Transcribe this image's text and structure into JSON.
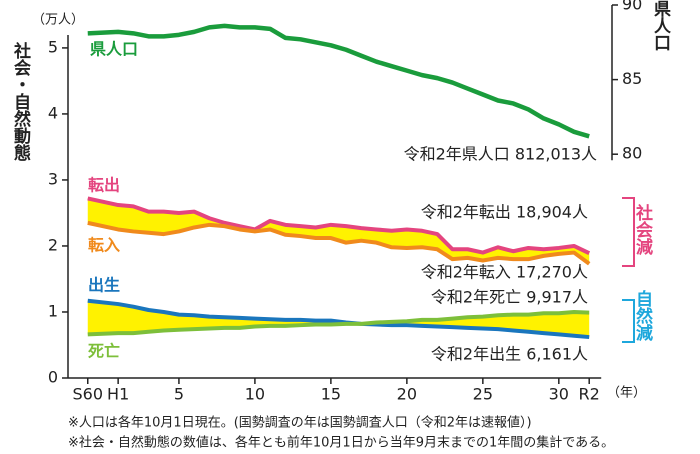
{
  "chart_data": {
    "type": "line",
    "y_unit": "（万人）",
    "ylabel": "社会・自然動態",
    "y2label": "県人口",
    "x_unit": "（年）",
    "x": [
      -1,
      1,
      2,
      3,
      4,
      5,
      6,
      7,
      8,
      9,
      10,
      11,
      12,
      13,
      14,
      15,
      16,
      17,
      18,
      19,
      20,
      21,
      22,
      23,
      24,
      25,
      26,
      27,
      28,
      29,
      30,
      31,
      32
    ],
    "xlim": [
      -2.3,
      33.5
    ],
    "xticks": [
      {
        "value": -1,
        "label": "S60"
      },
      {
        "value": 1,
        "label": "H1"
      },
      5,
      10,
      15,
      20,
      25,
      30,
      {
        "value": 32,
        "label": "R2"
      }
    ],
    "ylim": [
      0,
      5.65
    ],
    "yticks": [
      0,
      1,
      2,
      3,
      4,
      5
    ],
    "y2lim": [
      65,
      90
    ],
    "y2ticks": [
      80,
      85,
      90
    ],
    "series": [
      {
        "name": "県人口",
        "color": "#1a9c3c",
        "axis": "y2",
        "values": [
          88.1,
          88.2,
          88.1,
          87.9,
          87.9,
          88.0,
          88.2,
          88.5,
          88.6,
          88.5,
          88.5,
          88.4,
          87.8,
          87.7,
          87.5,
          87.3,
          87.0,
          86.6,
          86.2,
          85.9,
          85.6,
          85.3,
          85.1,
          84.8,
          84.4,
          84.0,
          83.6,
          83.4,
          83.0,
          82.4,
          82.0,
          81.5,
          81.2
        ]
      },
      {
        "name": "転出",
        "color": "#e4457f",
        "values": [
          2.72,
          2.62,
          2.6,
          2.52,
          2.52,
          2.5,
          2.52,
          2.42,
          2.35,
          2.3,
          2.25,
          2.38,
          2.32,
          2.3,
          2.28,
          2.32,
          2.3,
          2.27,
          2.25,
          2.23,
          2.25,
          2.23,
          2.18,
          1.95,
          1.95,
          1.9,
          1.98,
          1.92,
          1.97,
          1.95,
          1.97,
          2.0,
          1.89
        ]
      },
      {
        "name": "転入",
        "color": "#f08a1c",
        "values": [
          2.35,
          2.25,
          2.22,
          2.2,
          2.18,
          2.22,
          2.28,
          2.32,
          2.3,
          2.25,
          2.22,
          2.25,
          2.17,
          2.15,
          2.12,
          2.12,
          2.05,
          2.08,
          2.05,
          1.98,
          1.97,
          1.98,
          1.95,
          1.8,
          1.82,
          1.78,
          1.82,
          1.8,
          1.8,
          1.85,
          1.88,
          1.9,
          1.73
        ]
      },
      {
        "name": "出生",
        "color": "#1a76bd",
        "values": [
          1.17,
          1.12,
          1.08,
          1.03,
          1.0,
          0.96,
          0.95,
          0.93,
          0.92,
          0.91,
          0.9,
          0.89,
          0.88,
          0.88,
          0.87,
          0.87,
          0.84,
          0.82,
          0.81,
          0.8,
          0.8,
          0.79,
          0.78,
          0.77,
          0.76,
          0.75,
          0.74,
          0.72,
          0.7,
          0.68,
          0.66,
          0.64,
          0.62
        ]
      },
      {
        "name": "死亡",
        "color": "#7dbf3a",
        "values": [
          0.66,
          0.68,
          0.68,
          0.7,
          0.72,
          0.73,
          0.74,
          0.75,
          0.76,
          0.76,
          0.78,
          0.79,
          0.79,
          0.8,
          0.81,
          0.81,
          0.82,
          0.82,
          0.84,
          0.85,
          0.86,
          0.88,
          0.88,
          0.9,
          0.92,
          0.93,
          0.95,
          0.96,
          0.96,
          0.98,
          0.98,
          1.0,
          0.99
        ]
      }
    ],
    "fill_color": "#fff200",
    "annotations": [
      "令和2年県人口 812,013人",
      "令和2年転出 18,904人",
      "令和2年転入 17,270人",
      "令和2年死亡 9,917人",
      "令和2年出生 6,161人"
    ],
    "brackets": [
      {
        "label": "社会減",
        "color": "#e4457f"
      },
      {
        "label": "自然減",
        "color": "#1ea7dc"
      }
    ],
    "notes": [
      "※人口は各年10月1日現在。(国勢調査の年は国勢調査人口（令和2年は速報値）)",
      "※社会・自然動態の数値は、各年とも前年10月1日から当年9月末までの1年間の集計である。"
    ]
  }
}
